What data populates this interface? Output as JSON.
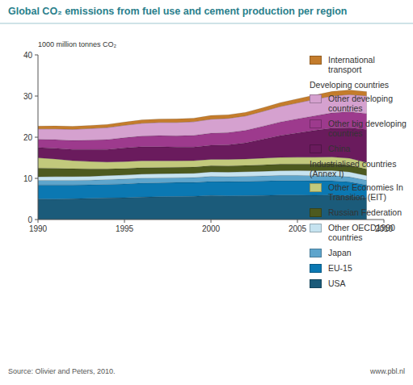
{
  "chart_data": {
    "type": "area",
    "stacked": true,
    "title": "Global CO₂ emissions from fuel use and cement production per region",
    "y_label": "1000 million tonnes CO₂",
    "source": "Source: Olivier and Peters, 2010.",
    "credit": "www.pbl.nl",
    "x": [
      1990,
      1991,
      1992,
      1993,
      1994,
      1995,
      1996,
      1997,
      1998,
      1999,
      2000,
      2001,
      2002,
      2003,
      2004,
      2005,
      2006,
      2007,
      2008,
      2009
    ],
    "xlim": [
      1990,
      2010
    ],
    "xticks": [
      1990,
      1995,
      2000,
      2005,
      2010
    ],
    "ylim": [
      0,
      40
    ],
    "yticks": [
      0,
      10,
      20,
      30,
      40
    ],
    "grid": false,
    "legend": "right",
    "series": [
      {
        "name": "USA",
        "group": "Industrialised countries (Annex I)",
        "color": "#1b5b7a",
        "values": [
          5.0,
          4.95,
          5.05,
          5.15,
          5.25,
          5.3,
          5.45,
          5.55,
          5.6,
          5.65,
          5.85,
          5.75,
          5.8,
          5.85,
          5.95,
          5.95,
          5.9,
          5.95,
          5.75,
          5.3
        ]
      },
      {
        "name": "EU-15",
        "group": "Industrialised countries (Annex I)",
        "color": "#0b78b2",
        "values": [
          3.4,
          3.45,
          3.35,
          3.3,
          3.3,
          3.35,
          3.4,
          3.35,
          3.4,
          3.35,
          3.4,
          3.45,
          3.45,
          3.5,
          3.5,
          3.5,
          3.5,
          3.45,
          3.4,
          3.1
        ]
      },
      {
        "name": "Japan",
        "group": "Industrialised countries (Annex I)",
        "color": "#5ea5cc",
        "values": [
          1.1,
          1.12,
          1.13,
          1.12,
          1.17,
          1.18,
          1.2,
          1.2,
          1.17,
          1.2,
          1.23,
          1.22,
          1.25,
          1.25,
          1.27,
          1.27,
          1.26,
          1.28,
          1.22,
          1.15
        ]
      },
      {
        "name": "Other OECD1990 countries",
        "group": "Industrialised countries (Annex I)",
        "color": "#c6e3f0",
        "values": [
          0.9,
          0.9,
          0.92,
          0.93,
          0.96,
          0.98,
          1.0,
          1.03,
          1.03,
          1.05,
          1.08,
          1.1,
          1.12,
          1.14,
          1.16,
          1.18,
          1.2,
          1.22,
          1.2,
          1.15
        ]
      },
      {
        "name": "Russian Federation",
        "group": "Industrialised countries (Annex I)",
        "color": "#4d5a1f",
        "values": [
          2.1,
          2.05,
          1.9,
          1.8,
          1.6,
          1.58,
          1.55,
          1.5,
          1.48,
          1.5,
          1.52,
          1.53,
          1.52,
          1.56,
          1.58,
          1.58,
          1.62,
          1.63,
          1.66,
          1.55
        ]
      },
      {
        "name": "Other Economies In Transition (EIT)",
        "group": "Industrialised countries (Annex I)",
        "color": "#c2c97c",
        "values": [
          2.5,
          2.25,
          1.95,
          1.8,
          1.7,
          1.7,
          1.68,
          1.65,
          1.6,
          1.55,
          1.55,
          1.58,
          1.58,
          1.62,
          1.64,
          1.65,
          1.67,
          1.68,
          1.68,
          1.6
        ]
      },
      {
        "name": "China",
        "group": "Developing countries",
        "color": "#6a1b5d",
        "values": [
          2.5,
          2.6,
          2.7,
          2.9,
          3.05,
          3.3,
          3.4,
          3.4,
          3.3,
          3.3,
          3.4,
          3.5,
          3.9,
          4.6,
          5.3,
          5.9,
          6.5,
          7.0,
          7.4,
          8.0
        ]
      },
      {
        "name": "Other big developing countries",
        "group": "Developing countries",
        "color": "#9d3a8d",
        "values": [
          2.0,
          2.1,
          2.2,
          2.3,
          2.4,
          2.5,
          2.6,
          2.7,
          2.75,
          2.85,
          2.95,
          3.0,
          3.05,
          3.15,
          3.3,
          3.45,
          3.55,
          3.7,
          3.85,
          3.9
        ]
      },
      {
        "name": "Other developing countries",
        "group": "Developing countries",
        "color": "#d5a1cf",
        "values": [
          2.5,
          2.6,
          2.7,
          2.8,
          2.9,
          3.0,
          3.1,
          3.2,
          3.25,
          3.3,
          3.4,
          3.45,
          3.5,
          3.6,
          3.75,
          3.85,
          4.0,
          4.1,
          4.2,
          4.3
        ]
      },
      {
        "name": "International transport",
        "color": "#c47c2c",
        "values": [
          0.7,
          0.72,
          0.74,
          0.76,
          0.78,
          0.8,
          0.82,
          0.84,
          0.86,
          0.88,
          0.9,
          0.88,
          0.88,
          0.9,
          0.95,
          1.0,
          1.05,
          1.1,
          1.1,
          1.05
        ]
      }
    ]
  }
}
